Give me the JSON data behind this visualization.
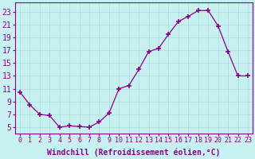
{
  "x": [
    0,
    1,
    2,
    3,
    4,
    5,
    6,
    7,
    8,
    9,
    10,
    11,
    12,
    13,
    14,
    15,
    16,
    17,
    18,
    19,
    20,
    21,
    22,
    23
  ],
  "y": [
    10.5,
    8.5,
    7.0,
    6.8,
    5.0,
    5.2,
    5.1,
    5.0,
    5.8,
    7.2,
    11.0,
    11.5,
    14.0,
    16.8,
    17.3,
    19.5,
    21.5,
    22.3,
    23.2,
    23.2,
    20.8,
    16.8,
    13.0,
    13.0
  ],
  "line_color": "#8B008B",
  "marker": "+",
  "bg_color": "#c8f0f0",
  "grid_color": "#aadddd",
  "xlabel": "Windchill (Refroidissement éolien,°C)",
  "xlim": [
    -0.5,
    23.5
  ],
  "ylim": [
    4.0,
    24.5
  ],
  "xticks": [
    0,
    1,
    2,
    3,
    4,
    5,
    6,
    7,
    8,
    9,
    10,
    11,
    12,
    13,
    14,
    15,
    16,
    17,
    18,
    19,
    20,
    21,
    22,
    23
  ],
  "yticks": [
    5,
    7,
    9,
    11,
    13,
    15,
    17,
    19,
    21,
    23
  ],
  "tick_color": "#8B008B",
  "label_color": "#8B008B",
  "xlabel_fontsize": 7,
  "ytick_fontsize": 7,
  "xtick_fontsize": 6,
  "markersize": 5,
  "linewidth": 0.9
}
